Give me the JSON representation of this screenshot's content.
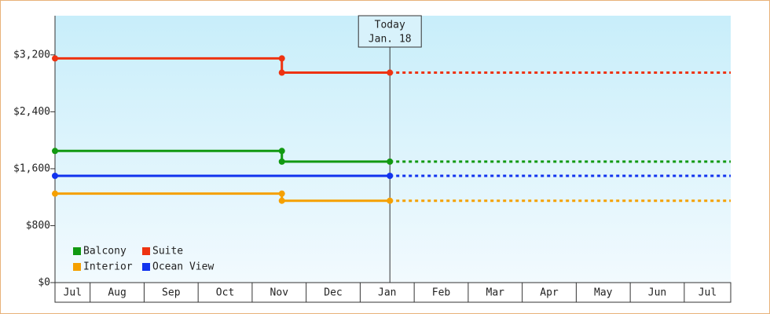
{
  "chart_data": {
    "type": "line",
    "categories": [
      "Jul",
      "Aug",
      "Sep",
      "Oct",
      "Nov",
      "Dec",
      "Jan",
      "Feb",
      "Mar",
      "Apr",
      "May",
      "Jun",
      "Jul"
    ],
    "xlim": [
      0.35,
      12.86
    ],
    "xticks": [
      1,
      2,
      3,
      4,
      5,
      6,
      7,
      8,
      9,
      10,
      11,
      12
    ],
    "ylim": [
      0,
      3750
    ],
    "yticks": [
      {
        "value": 0,
        "label": "$0"
      },
      {
        "value": 800,
        "label": "$800"
      },
      {
        "value": 1600,
        "label": "$1,600"
      },
      {
        "value": 2400,
        "label": "$2,400"
      },
      {
        "value": 3200,
        "label": "$3,200"
      }
    ],
    "today": {
      "x": 6.55,
      "label": "Today",
      "date": "Jan. 18"
    },
    "legend": "lower left",
    "series": [
      {
        "name": "Balcony",
        "color": "#119911",
        "x": [
          0.35,
          4.55,
          4.55,
          6.55,
          12.86
        ],
        "values": [
          1850,
          1850,
          1700,
          1700,
          1700
        ]
      },
      {
        "name": "Suite",
        "color": "#ee3311",
        "x": [
          0.35,
          4.55,
          4.55,
          6.55,
          12.86
        ],
        "values": [
          3150,
          3150,
          2950,
          2950,
          2950
        ]
      },
      {
        "name": "Interior",
        "color": "#f5a000",
        "x": [
          0.35,
          4.55,
          4.55,
          6.55,
          12.86
        ],
        "values": [
          1250,
          1250,
          1150,
          1150,
          1150
        ]
      },
      {
        "name": "Ocean View",
        "color": "#1133ee",
        "x": [
          0.35,
          6.55,
          12.86
        ],
        "values": [
          1500,
          1500,
          1500
        ]
      }
    ]
  }
}
